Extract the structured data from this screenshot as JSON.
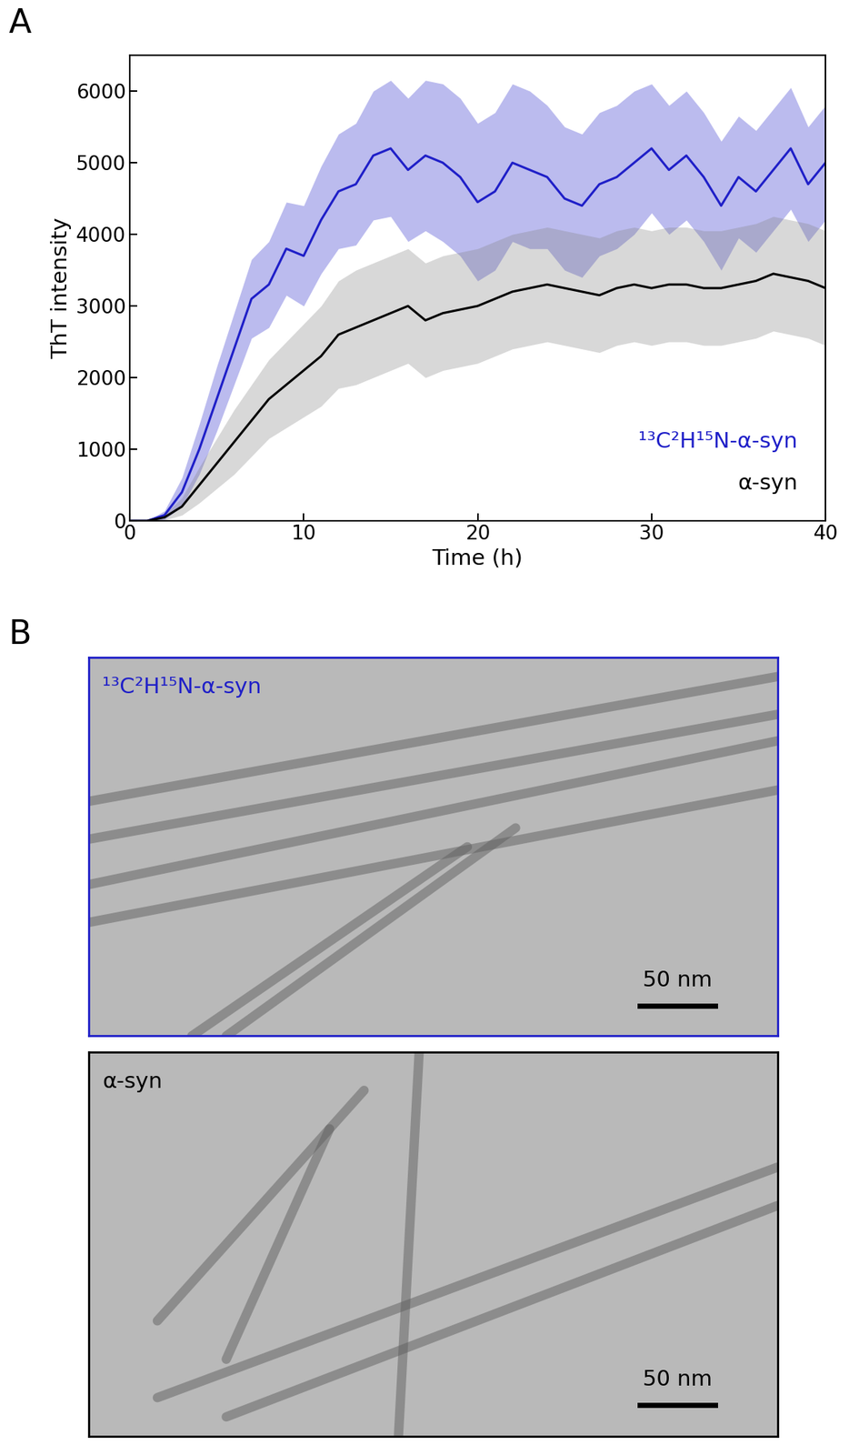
{
  "chart_data": {
    "type": "line",
    "panel_label": "A",
    "x_label": "Time (h)",
    "y_label": "ThT intensity",
    "x": [
      0,
      1,
      2,
      3,
      4,
      5,
      6,
      7,
      8,
      9,
      10,
      11,
      12,
      13,
      14,
      15,
      16,
      17,
      18,
      19,
      20,
      21,
      22,
      23,
      24,
      25,
      26,
      27,
      28,
      29,
      30,
      31,
      32,
      33,
      34,
      35,
      36,
      37,
      38,
      39,
      40
    ],
    "series": [
      {
        "name": "¹³C²H¹⁵N-α-syn",
        "color": "#1f1fc8",
        "values": [
          0,
          0,
          80,
          400,
          1000,
          1700,
          2400,
          3100,
          3300,
          3800,
          3700,
          4200,
          4600,
          4700,
          5100,
          5200,
          4900,
          5100,
          5000,
          4800,
          4450,
          4600,
          5000,
          4900,
          4800,
          4500,
          4400,
          4700,
          4800,
          5000,
          5200,
          4900,
          5100,
          4800,
          4400,
          4800,
          4600,
          4900,
          5200,
          4700,
          5000
        ],
        "error": [
          0,
          0,
          60,
          200,
          350,
          450,
          500,
          550,
          600,
          650,
          700,
          750,
          800,
          850,
          900,
          950,
          1000,
          1050,
          1100,
          1100,
          1100,
          1100,
          1100,
          1100,
          1000,
          1000,
          1000,
          1000,
          1000,
          1000,
          900,
          900,
          900,
          900,
          900,
          850,
          850,
          850,
          850,
          800,
          800
        ]
      },
      {
        "name": "α-syn",
        "color": "#000000",
        "values": [
          0,
          0,
          50,
          200,
          500,
          800,
          1100,
          1400,
          1700,
          1900,
          2100,
          2300,
          2600,
          2700,
          2800,
          2900,
          3000,
          2800,
          2900,
          2950,
          3000,
          3100,
          3200,
          3250,
          3300,
          3250,
          3200,
          3150,
          3250,
          3300,
          3250,
          3300,
          3300,
          3250,
          3250,
          3300,
          3350,
          3450,
          3400,
          3350,
          3250
        ],
        "error": [
          0,
          0,
          40,
          120,
          250,
          350,
          450,
          500,
          550,
          600,
          650,
          700,
          750,
          800,
          800,
          800,
          800,
          800,
          800,
          800,
          800,
          800,
          800,
          800,
          800,
          800,
          800,
          800,
          800,
          800,
          800,
          800,
          800,
          800,
          800,
          800,
          800,
          800,
          800,
          800,
          800
        ]
      }
    ],
    "xlim": [
      0,
      40
    ],
    "xticks": [
      0,
      10,
      20,
      30,
      40
    ],
    "ylim": [
      0,
      6500
    ],
    "yticks": [
      0,
      1000,
      2000,
      3000,
      4000,
      5000,
      6000
    ],
    "grid": false
  },
  "panel_b": {
    "panel_label": "B",
    "images": [
      {
        "label": "¹³C²H¹⁵N-α-syn",
        "color": "#1f1fc8",
        "scale_bar": "50 nm"
      },
      {
        "label": "α-syn",
        "color": "#000000",
        "scale_bar": "50 nm"
      }
    ]
  }
}
